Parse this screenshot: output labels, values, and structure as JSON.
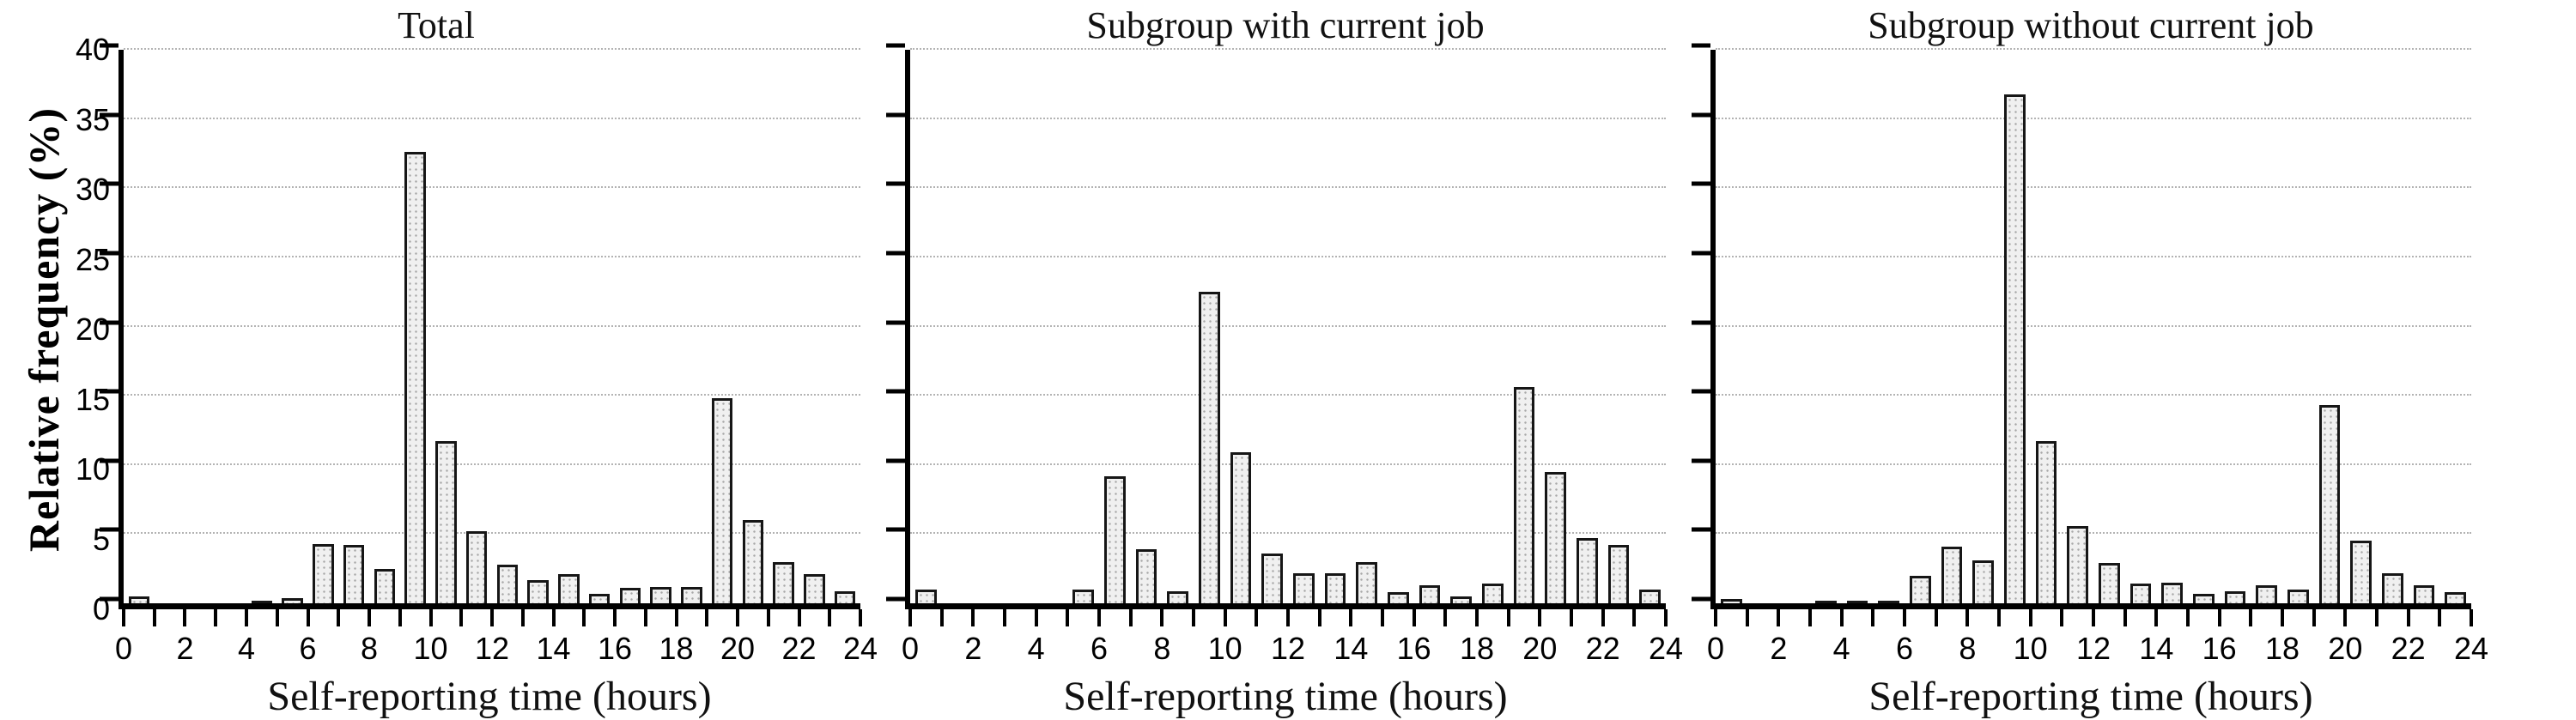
{
  "figure": {
    "background": "#ffffff",
    "ylabel": "Relative frequency (%)",
    "xlabel": "Self-reporting time (hours)",
    "ylim": [
      0,
      40
    ],
    "yticks": [
      0,
      5,
      10,
      15,
      20,
      25,
      30,
      35,
      40
    ],
    "xlim": [
      0,
      24
    ],
    "xticks_labeled": [
      0,
      2,
      4,
      6,
      8,
      10,
      12,
      14,
      16,
      18,
      20,
      22,
      24
    ],
    "xtick_minor_step_hours": 1,
    "grid": "horizontal-dotted",
    "legend": "none",
    "bar_fill": "#f0f0f0",
    "bar_pattern_dot": "#a8a8a8",
    "bar_border": "#161616",
    "gridline_color": "#b3b3b3"
  },
  "chart_data": [
    {
      "type": "bar",
      "title": "Total",
      "xlabel": "Self-reporting time (hours)",
      "ylabel": "Relative frequency (%)",
      "ylim": [
        0,
        40
      ],
      "bin_width_hours": 1,
      "bin_start_hours": [
        0,
        1,
        2,
        3,
        4,
        5,
        6,
        7,
        8,
        9,
        10,
        11,
        12,
        13,
        14,
        15,
        16,
        17,
        18,
        19,
        20,
        21,
        22,
        23
      ],
      "values": [
        0.5,
        0,
        0,
        0,
        0.1,
        0.4,
        4.3,
        4.2,
        2.5,
        32.6,
        11.7,
        5.2,
        2.8,
        1.7,
        2.1,
        0.7,
        1.1,
        1.2,
        1.2,
        14.8,
        6.0,
        3.0,
        2.1,
        0.9
      ]
    },
    {
      "type": "bar",
      "title": "Subgroup with current job",
      "xlabel": "Self-reporting time (hours)",
      "ylabel": "",
      "ylim": [
        0,
        40
      ],
      "bin_width_hours": 1,
      "bin_start_hours": [
        0,
        1,
        2,
        3,
        4,
        5,
        6,
        7,
        8,
        9,
        10,
        11,
        12,
        13,
        14,
        15,
        16,
        17,
        18,
        19,
        20,
        21,
        22,
        23
      ],
      "values": [
        1.0,
        0,
        0,
        0,
        0,
        1.0,
        9.2,
        3.9,
        0.9,
        22.5,
        10.9,
        3.6,
        2.2,
        2.2,
        3.0,
        0.8,
        1.3,
        0.5,
        1.4,
        15.6,
        9.5,
        4.7,
        4.2,
        1.0
      ]
    },
    {
      "type": "bar",
      "title": "Subgroup without current job",
      "xlabel": "Self-reporting time (hours)",
      "ylabel": "",
      "ylim": [
        0,
        40
      ],
      "bin_width_hours": 1,
      "bin_start_hours": [
        0,
        1,
        2,
        3,
        4,
        5,
        6,
        7,
        8,
        9,
        10,
        11,
        12,
        13,
        14,
        15,
        16,
        17,
        18,
        19,
        20,
        21,
        22,
        23
      ],
      "values": [
        0.3,
        0,
        0,
        0.1,
        0.2,
        0.1,
        2.0,
        4.1,
        3.1,
        36.8,
        11.7,
        5.6,
        2.9,
        1.4,
        1.5,
        0.7,
        0.9,
        1.3,
        1.0,
        14.3,
        4.5,
        2.2,
        1.3,
        0.8
      ]
    }
  ]
}
